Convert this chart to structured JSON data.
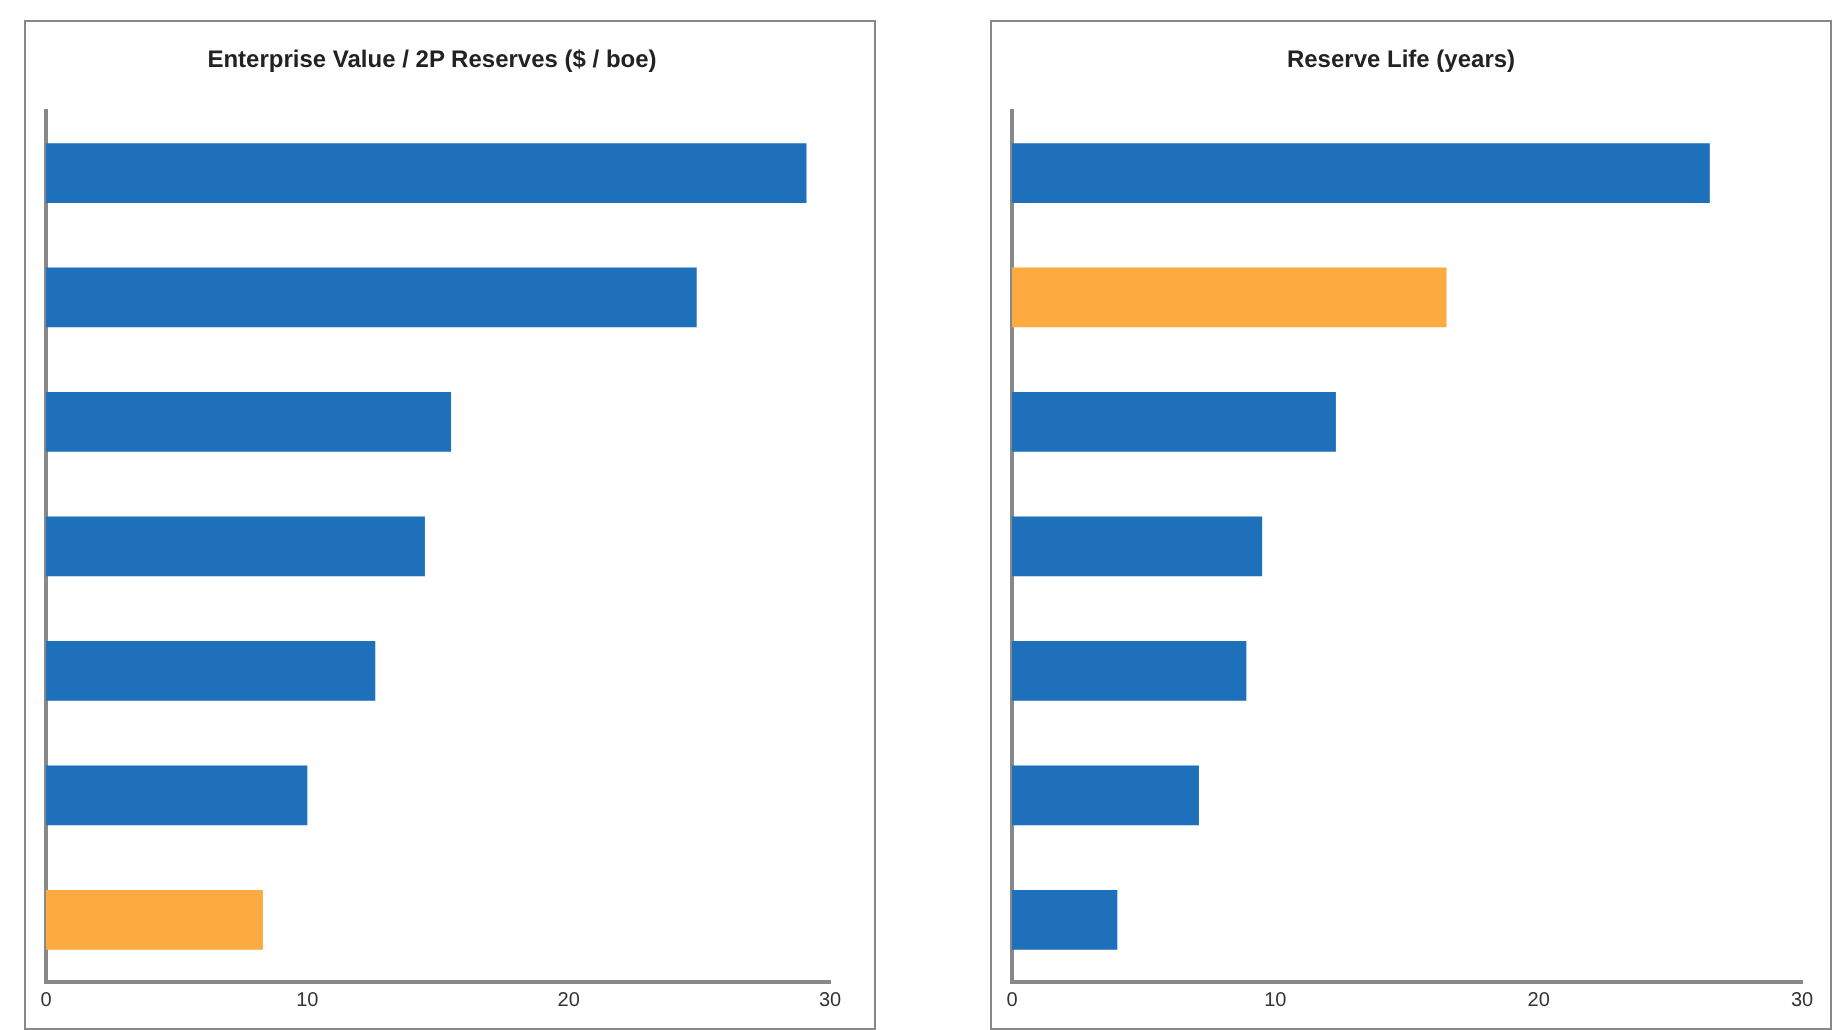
{
  "chart_data": [
    {
      "type": "bar",
      "orientation": "horizontal",
      "title": "Enterprise Value / 2P Reserves ($ / boe)",
      "categories": [
        null,
        null,
        null,
        null,
        null,
        null,
        null
      ],
      "values": [
        29.1,
        24.9,
        15.5,
        14.5,
        12.6,
        10.0,
        8.3
      ],
      "colors": [
        "#1f70bb",
        "#1f70bb",
        "#1f70bb",
        "#1f70bb",
        "#1f70bb",
        "#1f70bb",
        "#fbab3f"
      ],
      "xlim": [
        0,
        30
      ],
      "xticks": [
        0,
        10,
        20,
        30
      ],
      "grid": false,
      "legend": false
    },
    {
      "type": "bar",
      "orientation": "horizontal",
      "title": "Reserve Life (years)",
      "categories": [
        null,
        null,
        null,
        null,
        null,
        null,
        null
      ],
      "values": [
        26.5,
        16.5,
        12.3,
        9.5,
        8.9,
        7.1,
        4.0
      ],
      "colors": [
        "#1f70bb",
        "#fbab3f",
        "#1f70bb",
        "#1f70bb",
        "#1f70bb",
        "#1f70bb",
        "#1f70bb"
      ],
      "xlim": [
        0,
        30
      ],
      "xticks": [
        0,
        10,
        20,
        30
      ],
      "grid": false,
      "legend": false
    }
  ]
}
